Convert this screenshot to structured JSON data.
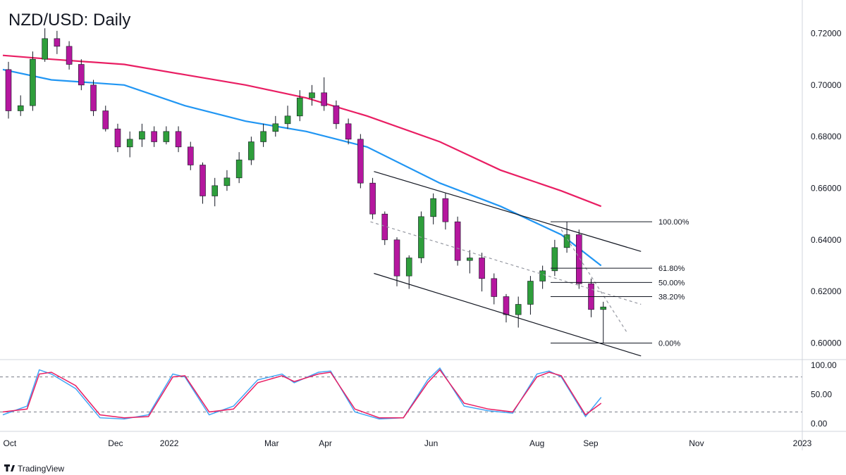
{
  "title": "NZD/USD: Daily",
  "brand": "TradingView",
  "colors": {
    "bull": "#26a69a",
    "bull_fill": "#2e9e3b",
    "bear": "#b5179e",
    "ma_long": "#e91e63",
    "ma_short": "#2196f3",
    "stoch_k": "#42a5f5",
    "stoch_d": "#e91e63",
    "grid": "#e0e3eb",
    "text": "#131722"
  },
  "chart_data": [
    {
      "type": "line",
      "title": "NZD/USD: Daily",
      "x_ticks": [
        "Oct",
        "Dec",
        "2022",
        "Mar",
        "Apr",
        "Jun",
        "Aug",
        "Sep",
        "Nov",
        "2023"
      ],
      "y_ticks": [
        "0.72000",
        "0.70000",
        "0.68000",
        "0.66000",
        "0.64000",
        "0.62000",
        "0.60000"
      ],
      "ylim": [
        0.5955,
        0.7253
      ],
      "series": [
        {
          "kind": "candles",
          "x": [
            "2021-09-27",
            "2021-10-04",
            "2021-10-11",
            "2021-10-18",
            "2021-10-25",
            "2021-11-01",
            "2021-11-08",
            "2021-11-15",
            "2021-11-22",
            "2021-11-29",
            "2021-12-06",
            "2021-12-13",
            "2021-12-20",
            "2021-12-27",
            "2022-01-03",
            "2022-01-10",
            "2022-01-17",
            "2022-01-24",
            "2022-01-31",
            "2022-02-07",
            "2022-02-14",
            "2022-02-21",
            "2022-02-28",
            "2022-03-07",
            "2022-03-14",
            "2022-03-21",
            "2022-03-28",
            "2022-04-04",
            "2022-04-11",
            "2022-04-18",
            "2022-04-25",
            "2022-05-02",
            "2022-05-09",
            "2022-05-16",
            "2022-05-23",
            "2022-05-30",
            "2022-06-06",
            "2022-06-13",
            "2022-06-20",
            "2022-06-27",
            "2022-07-04",
            "2022-07-11",
            "2022-07-18",
            "2022-07-25",
            "2022-08-01",
            "2022-08-08",
            "2022-08-15",
            "2022-08-22",
            "2022-08-29",
            "2022-09-05"
          ],
          "open": [
            0.706,
            0.69,
            0.692,
            0.71,
            0.718,
            0.715,
            0.708,
            0.7,
            0.69,
            0.683,
            0.676,
            0.679,
            0.682,
            0.678,
            0.682,
            0.676,
            0.669,
            0.657,
            0.661,
            0.664,
            0.671,
            0.678,
            0.682,
            0.685,
            0.688,
            0.695,
            0.697,
            0.692,
            0.685,
            0.679,
            0.662,
            0.65,
            0.64,
            0.626,
            0.633,
            0.649,
            0.656,
            0.647,
            0.632,
            0.633,
            0.625,
            0.618,
            0.611,
            0.615,
            0.624,
            0.628,
            0.637,
            0.642,
            0.623,
            0.613
          ],
          "close": [
            0.69,
            0.692,
            0.71,
            0.718,
            0.715,
            0.708,
            0.7,
            0.69,
            0.683,
            0.676,
            0.679,
            0.682,
            0.678,
            0.682,
            0.676,
            0.669,
            0.657,
            0.661,
            0.664,
            0.671,
            0.678,
            0.682,
            0.685,
            0.688,
            0.695,
            0.697,
            0.692,
            0.685,
            0.679,
            0.662,
            0.65,
            0.64,
            0.626,
            0.633,
            0.649,
            0.656,
            0.647,
            0.632,
            0.633,
            0.625,
            0.618,
            0.611,
            0.615,
            0.624,
            0.628,
            0.637,
            0.642,
            0.623,
            0.613,
            0.614
          ],
          "high": [
            0.709,
            0.696,
            0.713,
            0.722,
            0.721,
            0.717,
            0.71,
            0.702,
            0.692,
            0.685,
            0.682,
            0.685,
            0.684,
            0.684,
            0.684,
            0.678,
            0.67,
            0.664,
            0.667,
            0.674,
            0.68,
            0.685,
            0.688,
            0.692,
            0.698,
            0.7,
            0.703,
            0.694,
            0.687,
            0.681,
            0.664,
            0.651,
            0.641,
            0.634,
            0.651,
            0.658,
            0.658,
            0.649,
            0.636,
            0.635,
            0.627,
            0.619,
            0.618,
            0.626,
            0.63,
            0.64,
            0.647,
            0.644,
            0.625,
            0.616
          ],
          "low": [
            0.687,
            0.688,
            0.69,
            0.709,
            0.712,
            0.706,
            0.698,
            0.688,
            0.682,
            0.674,
            0.672,
            0.676,
            0.676,
            0.677,
            0.674,
            0.667,
            0.654,
            0.653,
            0.659,
            0.662,
            0.669,
            0.676,
            0.68,
            0.683,
            0.686,
            0.692,
            0.69,
            0.683,
            0.677,
            0.66,
            0.648,
            0.638,
            0.622,
            0.621,
            0.631,
            0.646,
            0.644,
            0.63,
            0.627,
            0.62,
            0.615,
            0.608,
            0.606,
            0.611,
            0.621,
            0.626,
            0.635,
            0.621,
            0.61,
            0.6
          ]
        },
        {
          "kind": "line",
          "role": "ma_long",
          "x": [
            "2021-09-27",
            "2021-10-25",
            "2021-12-06",
            "2022-01-10",
            "2022-02-14",
            "2022-03-21",
            "2022-04-25",
            "2022-06-06",
            "2022-07-11",
            "2022-08-15",
            "2022-09-07"
          ],
          "values": [
            0.7115,
            0.71,
            0.708,
            0.704,
            0.7,
            0.695,
            0.688,
            0.678,
            0.667,
            0.659,
            0.653
          ]
        },
        {
          "kind": "line",
          "role": "ma_short",
          "x": [
            "2021-09-27",
            "2021-10-25",
            "2021-12-06",
            "2022-01-10",
            "2022-02-14",
            "2022-03-21",
            "2022-04-25",
            "2022-06-06",
            "2022-07-11",
            "2022-08-15",
            "2022-09-07"
          ],
          "values": [
            0.706,
            0.702,
            0.7,
            0.692,
            0.686,
            0.682,
            0.676,
            0.662,
            0.653,
            0.642,
            0.63
          ]
        }
      ],
      "annotations": {
        "channel": [
          {
            "x1": "2022-04-29",
            "y1": 0.6665,
            "x2": "2022-09-30",
            "y2": 0.6355
          },
          {
            "x1": "2022-04-29",
            "y1": 0.627,
            "x2": "2022-09-30",
            "y2": 0.595
          },
          {
            "x1": "2022-04-27",
            "y1": 0.647,
            "x2": "2022-09-30",
            "y2": 0.615,
            "dashed": true
          },
          {
            "x1": "2022-08-15",
            "y1": 0.644,
            "x2": "2022-09-22",
            "y2": 0.604,
            "dashed": true
          }
        ],
        "fib_levels": [
          {
            "label": "100.00%",
            "value": 0.647
          },
          {
            "label": "61.80%",
            "value": 0.629
          },
          {
            "label": "50.00%",
            "value": 0.6235
          },
          {
            "label": "38.20%",
            "value": 0.618
          },
          {
            "label": "0.00%",
            "value": 0.6
          }
        ]
      }
    },
    {
      "type": "line",
      "y_ticks": [
        "100.00",
        "50.00",
        "0.00"
      ],
      "ylim": [
        -3,
        103
      ],
      "reference_lines": [
        80,
        20
      ],
      "series": [
        {
          "role": "stoch_k",
          "x": [
            "2021-09-27",
            "2021-10-11",
            "2021-10-18",
            "2021-10-25",
            "2021-11-08",
            "2021-11-22",
            "2021-12-06",
            "2021-12-20",
            "2022-01-03",
            "2022-01-10",
            "2022-01-24",
            "2022-02-07",
            "2022-02-21",
            "2022-03-07",
            "2022-03-14",
            "2022-03-28",
            "2022-04-04",
            "2022-04-18",
            "2022-05-02",
            "2022-05-16",
            "2022-05-30",
            "2022-06-06",
            "2022-06-20",
            "2022-07-04",
            "2022-07-18",
            "2022-08-01",
            "2022-08-08",
            "2022-08-15",
            "2022-08-29",
            "2022-09-07"
          ],
          "values": [
            15,
            30,
            92,
            85,
            60,
            10,
            8,
            15,
            85,
            80,
            15,
            30,
            75,
            85,
            70,
            88,
            90,
            20,
            8,
            10,
            75,
            95,
            30,
            22,
            18,
            85,
            90,
            80,
            12,
            45
          ]
        },
        {
          "role": "stoch_d",
          "x": [
            "2021-09-27",
            "2021-10-11",
            "2021-10-18",
            "2021-10-25",
            "2021-11-08",
            "2021-11-22",
            "2021-12-06",
            "2021-12-20",
            "2022-01-03",
            "2022-01-10",
            "2022-01-24",
            "2022-02-07",
            "2022-02-21",
            "2022-03-07",
            "2022-03-14",
            "2022-03-28",
            "2022-04-04",
            "2022-04-18",
            "2022-05-02",
            "2022-05-16",
            "2022-05-30",
            "2022-06-06",
            "2022-06-20",
            "2022-07-04",
            "2022-07-18",
            "2022-08-01",
            "2022-08-08",
            "2022-08-15",
            "2022-08-29",
            "2022-09-07"
          ],
          "values": [
            20,
            25,
            85,
            88,
            65,
            15,
            10,
            12,
            80,
            82,
            20,
            25,
            70,
            82,
            72,
            85,
            88,
            25,
            10,
            10,
            70,
            92,
            35,
            25,
            20,
            80,
            88,
            82,
            15,
            35
          ]
        }
      ]
    }
  ]
}
